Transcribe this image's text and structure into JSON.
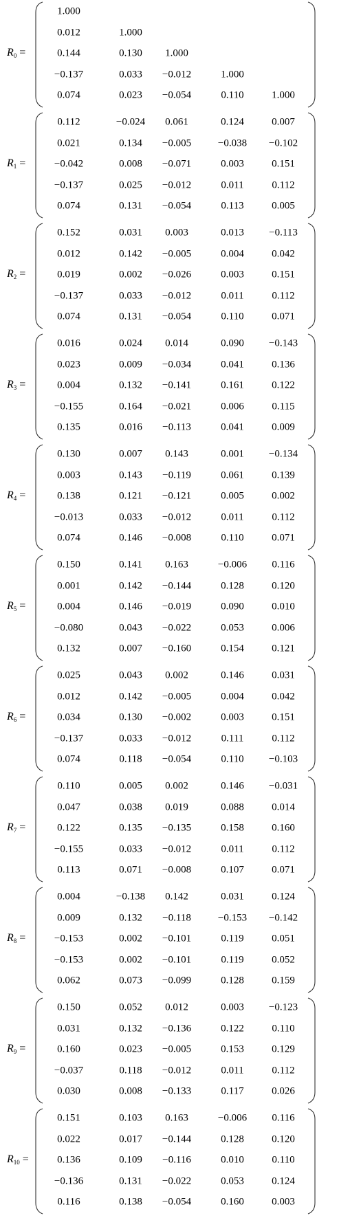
{
  "relation": "=",
  "matrices": [
    {
      "symbol": "R",
      "subscript": "0",
      "rows": [
        [
          "1.000"
        ],
        [
          "0.012",
          "1.000"
        ],
        [
          "0.144",
          "0.130",
          "1.000"
        ],
        [
          "−0.137",
          "0.033",
          "−0.012",
          "1.000"
        ],
        [
          "0.074",
          "0.023",
          "−0.054",
          "0.110",
          "1.000"
        ]
      ]
    },
    {
      "symbol": "R",
      "subscript": "1",
      "rows": [
        [
          "0.112",
          "−0.024",
          "0.061",
          "0.124",
          "0.007"
        ],
        [
          "0.021",
          "0.134",
          "−0.005",
          "−0.038",
          "−0.102"
        ],
        [
          "−0.042",
          "0.008",
          "−0.071",
          "0.003",
          "0.151"
        ],
        [
          "−0.137",
          "0.025",
          "−0.012",
          "0.011",
          "0.112"
        ],
        [
          "0.074",
          "0.131",
          "−0.054",
          "0.113",
          "0.005"
        ]
      ]
    },
    {
      "symbol": "R",
      "subscript": "2",
      "rows": [
        [
          "0.152",
          "0.031",
          "0.003",
          "0.013",
          "−0.113"
        ],
        [
          "0.012",
          "0.142",
          "−0.005",
          "0.004",
          "0.042"
        ],
        [
          "0.019",
          "0.002",
          "−0.026",
          "0.003",
          "0.151"
        ],
        [
          "−0.137",
          "0.033",
          "−0.012",
          "0.011",
          "0.112"
        ],
        [
          "0.074",
          "0.131",
          "−0.054",
          "0.110",
          "0.071"
        ]
      ]
    },
    {
      "symbol": "R",
      "subscript": "3",
      "rows": [
        [
          "0.016",
          "0.024",
          "0.014",
          "0.090",
          "−0.143"
        ],
        [
          "0.023",
          "0.009",
          "−0.034",
          "0.041",
          "0.136"
        ],
        [
          "0.004",
          "0.132",
          "−0.141",
          "0.161",
          "0.122"
        ],
        [
          "−0.155",
          "0.164",
          "−0.021",
          "0.006",
          "0.115"
        ],
        [
          "0.135",
          "0.016",
          "−0.113",
          "0.041",
          "0.009"
        ]
      ]
    },
    {
      "symbol": "R",
      "subscript": "4",
      "rows": [
        [
          "0.130",
          "0.007",
          "0.143",
          "0.001",
          "−0.134"
        ],
        [
          "0.003",
          "0.143",
          "−0.119",
          "0.061",
          "0.139"
        ],
        [
          "0.138",
          "0.121",
          "−0.121",
          "0.005",
          "0.002"
        ],
        [
          "−0.013",
          "0.033",
          "−0.012",
          "0.011",
          "0.112"
        ],
        [
          "0.074",
          "0.146",
          "−0.008",
          "0.110",
          "0.071"
        ]
      ]
    },
    {
      "symbol": "R",
      "subscript": "5",
      "rows": [
        [
          "0.150",
          "0.141",
          "0.163",
          "−0.006",
          "0.116"
        ],
        [
          "0.001",
          "0.142",
          "−0.144",
          "0.128",
          "0.120"
        ],
        [
          "0.004",
          "0.146",
          "−0.019",
          "0.090",
          "0.010"
        ],
        [
          "−0.080",
          "0.043",
          "−0.022",
          "0.053",
          "0.006"
        ],
        [
          "0.132",
          "0.007",
          "−0.160",
          "0.154",
          "0.121"
        ]
      ]
    },
    {
      "symbol": "R",
      "subscript": "6",
      "rows": [
        [
          "0.025",
          "0.043",
          "0.002",
          "0.146",
          "0.031"
        ],
        [
          "0.012",
          "0.142",
          "−0.005",
          "0.004",
          "0.042"
        ],
        [
          "0.034",
          "0.130",
          "−0.002",
          "0.003",
          "0.151"
        ],
        [
          "−0.137",
          "0.033",
          "−0.012",
          "0.111",
          "0.112"
        ],
        [
          "0.074",
          "0.118",
          "−0.054",
          "0.110",
          "−0.103"
        ]
      ]
    },
    {
      "symbol": "R",
      "subscript": "7",
      "rows": [
        [
          "0.110",
          "0.005",
          "0.002",
          "0.146",
          "−0.031"
        ],
        [
          "0.047",
          "0.038",
          "0.019",
          "0.088",
          "0.014"
        ],
        [
          "0.122",
          "0.135",
          "−0.135",
          "0.158",
          "0.160"
        ],
        [
          "−0.155",
          "0.033",
          "−0.012",
          "0.011",
          "0.112"
        ],
        [
          "0.113",
          "0.071",
          "−0.008",
          "0.107",
          "0.071"
        ]
      ]
    },
    {
      "symbol": "R",
      "subscript": "8",
      "rows": [
        [
          "0.004",
          "−0.138",
          "0.142",
          "0.031",
          "0.124"
        ],
        [
          "0.009",
          "0.132",
          "−0.118",
          "−0.153",
          "−0.142"
        ],
        [
          "−0.153",
          "0.002",
          "−0.101",
          "0.119",
          "0.051"
        ],
        [
          "−0.153",
          "0.002",
          "−0.101",
          "0.119",
          "0.052"
        ],
        [
          "0.062",
          "0.073",
          "−0.099",
          "0.128",
          "0.159"
        ]
      ]
    },
    {
      "symbol": "R",
      "subscript": "9",
      "rows": [
        [
          "0.150",
          "0.052",
          "0.012",
          "0.003",
          "−0.123"
        ],
        [
          "0.031",
          "0.132",
          "−0.136",
          "0.122",
          "0.110"
        ],
        [
          "0.160",
          "0.023",
          "−0.005",
          "0.153",
          "0.129"
        ],
        [
          "−0.037",
          "0.118",
          "−0.012",
          "0.011",
          "0.112"
        ],
        [
          "0.030",
          "0.008",
          "−0.133",
          "0.117",
          "0.026"
        ]
      ]
    },
    {
      "symbol": "R",
      "subscript": "10",
      "rows": [
        [
          "0.151",
          "0.103",
          "0.163",
          "−0.006",
          "0.116"
        ],
        [
          "0.022",
          "0.017",
          "−0.144",
          "0.128",
          "0.120"
        ],
        [
          "0.136",
          "0.109",
          "−0.116",
          "0.010",
          "0.110"
        ],
        [
          "−0.136",
          "0.131",
          "−0.022",
          "0.053",
          "0.124"
        ],
        [
          "0.116",
          "0.138",
          "−0.054",
          "0.160",
          "0.003"
        ]
      ]
    }
  ]
}
